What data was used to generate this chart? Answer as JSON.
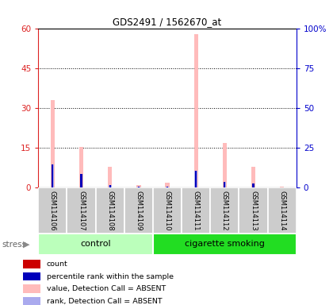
{
  "title": "GDS2491 / 1562670_at",
  "samples": [
    "GSM114106",
    "GSM114107",
    "GSM114108",
    "GSM114109",
    "GSM114110",
    "GSM114111",
    "GSM114112",
    "GSM114113",
    "GSM114114"
  ],
  "absent_value_values": [
    33,
    15.5,
    8,
    1,
    2,
    58,
    17,
    8,
    0.2
  ],
  "absent_rank_values": [
    14.5,
    8.5,
    1.5,
    0.5,
    0.5,
    10.5,
    3.5,
    2.5,
    0.2
  ],
  "rank_values": [
    14.5,
    8.5,
    1.5,
    0.5,
    0.5,
    10.5,
    3.5,
    2.5,
    0.2
  ],
  "count_values": [
    0,
    0,
    0,
    0,
    0,
    0,
    0,
    0,
    0
  ],
  "groups": [
    {
      "label": "control",
      "start": 0,
      "end": 4,
      "color": "#bbffbb"
    },
    {
      "label": "cigarette smoking",
      "start": 4,
      "end": 9,
      "color": "#22dd22"
    }
  ],
  "ylim_left": [
    0,
    60
  ],
  "ylim_right": [
    0,
    100
  ],
  "yticks_left": [
    0,
    15,
    30,
    45,
    60
  ],
  "yticks_right": [
    0,
    25,
    50,
    75,
    100
  ],
  "ytick_labels_left": [
    "0",
    "15",
    "30",
    "45",
    "60"
  ],
  "ytick_labels_right": [
    "0",
    "25",
    "50",
    "75",
    "100%"
  ],
  "color_count": "#cc0000",
  "color_rank": "#0000bb",
  "color_absent_value": "#ffbbbb",
  "color_absent_rank": "#aaaaee",
  "legend_items": [
    {
      "color": "#cc0000",
      "label": "count"
    },
    {
      "color": "#0000bb",
      "label": "percentile rank within the sample"
    },
    {
      "color": "#ffbbbb",
      "label": "value, Detection Call = ABSENT"
    },
    {
      "color": "#aaaaee",
      "label": "rank, Detection Call = ABSENT"
    }
  ]
}
